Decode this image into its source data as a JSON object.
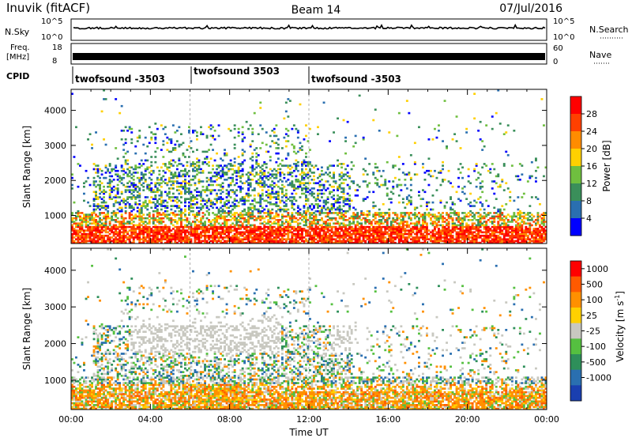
{
  "header": {
    "station": "Inuvik (fitACF)",
    "beam": "Beam 14",
    "date": "07/Jul/2016"
  },
  "strips": {
    "nsky_label": "N.Sky",
    "nsky_ticks": [
      "10^5",
      "10^0"
    ],
    "nsearch_label": "N.Search",
    "nsearch_ticks": [
      "10^5",
      "10^0"
    ],
    "freq_label_1": "Freq.",
    "freq_label_2": "[MHz]",
    "freq_ticks": [
      "18",
      "8"
    ],
    "nave_label": "Nave",
    "nave_ticks": [
      "60",
      "0"
    ],
    "cpid_label": "CPID",
    "cpid_segments": [
      {
        "label": "twofsound -3503",
        "start_hour": 0,
        "end_hour": 6
      },
      {
        "label": "twofsound 3503",
        "start_hour": 6,
        "end_hour": 12
      },
      {
        "label": "twofsound -3503",
        "start_hour": 12,
        "end_hour": 24
      }
    ]
  },
  "chart_data": [
    {
      "type": "heatmap",
      "name": "power",
      "ylabel": "Slant Range [km]",
      "xlabel": "",
      "x_ticks": [
        "00:00",
        "04:00",
        "08:00",
        "12:00",
        "16:00",
        "20:00",
        "00:00"
      ],
      "x_range_hours": [
        0,
        24
      ],
      "y_range_km": [
        200,
        4600
      ],
      "y_ticks": [
        1000,
        2000,
        3000,
        4000
      ],
      "colorbar": {
        "label": "Power [dB]",
        "ticks": [
          "4",
          "8",
          "12",
          "16",
          "20",
          "24",
          "28"
        ],
        "colors": [
          "#0000ff",
          "#2a6fb0",
          "#3a8f5a",
          "#6fbf3f",
          "#ffd000",
          "#ff8c00",
          "#ff4000",
          "#ff0000"
        ]
      }
    },
    {
      "type": "heatmap",
      "name": "velocity",
      "ylabel": "Slant Range [km]",
      "xlabel": "Time UT",
      "x_ticks": [
        "00:00",
        "04:00",
        "08:00",
        "12:00",
        "16:00",
        "20:00",
        "00:00"
      ],
      "x_range_hours": [
        0,
        24
      ],
      "y_range_km": [
        200,
        4600
      ],
      "y_ticks": [
        1000,
        2000,
        3000,
        4000
      ],
      "colorbar": {
        "label": "Velocity [m s",
        "label_sup": "-1",
        "label_end": "]",
        "ticks": [
          "1000",
          "500",
          "100",
          "25",
          "-25",
          "-100",
          "-500",
          "-1000"
        ],
        "colors": [
          "#1a3fb0",
          "#2a6fb0",
          "#2e8f5a",
          "#55c040",
          "#c8c8c0",
          "#ffd000",
          "#ff9000",
          "#ff5a00",
          "#ff0000"
        ]
      }
    }
  ]
}
